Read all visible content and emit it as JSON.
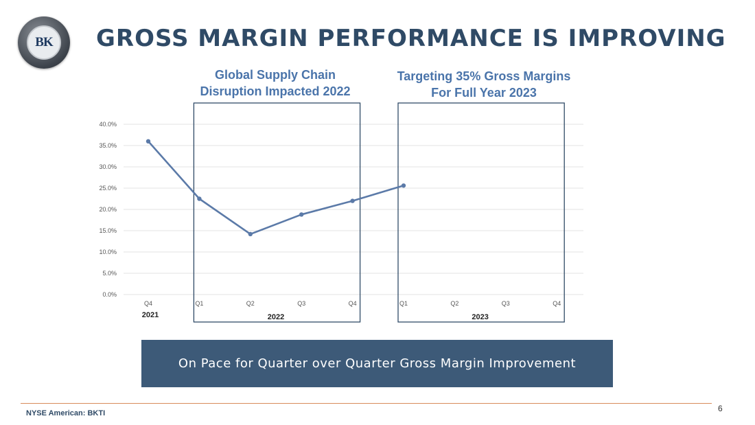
{
  "header": {
    "title": "GROSS MARGIN PERFORMANCE IS IMPROVING",
    "logo_text": "BK"
  },
  "annotations": {
    "left_note": "Global Supply Chain\nDisruption Impacted 2022",
    "right_note": "Targeting 35% Gross Margins\nFor Full Year 2023"
  },
  "banner": {
    "text": "On Pace for Quarter over Quarter Gross Margin Improvement"
  },
  "footer": {
    "ticker": "NYSE American: BKTI",
    "page_number": "6"
  },
  "colors": {
    "line": "#5b7aa8",
    "box_border": "#2f4a66",
    "grid": "#e3e3e3",
    "banner_bg": "#3d5a78"
  },
  "chart_data": {
    "type": "line",
    "categories": [
      "Q4",
      "Q1",
      "Q2",
      "Q3",
      "Q4",
      "Q1",
      "Q2",
      "Q3",
      "Q4"
    ],
    "year_labels": [
      {
        "label": "2021",
        "start": 0,
        "end": 0
      },
      {
        "label": "2022",
        "start": 1,
        "end": 4
      },
      {
        "label": "2023",
        "start": 5,
        "end": 8
      }
    ],
    "series": [
      {
        "name": "Gross Margin",
        "values": [
          36.0,
          22.5,
          14.2,
          18.8,
          22.0,
          25.6,
          null,
          null,
          null
        ]
      }
    ],
    "y_ticks": [
      "0.0%",
      "5.0%",
      "10.0%",
      "15.0%",
      "20.0%",
      "25.0%",
      "30.0%",
      "35.0%",
      "40.0%"
    ],
    "ylim": [
      0,
      40
    ],
    "grid": true,
    "title": "",
    "xlabel": "",
    "ylabel": ""
  }
}
